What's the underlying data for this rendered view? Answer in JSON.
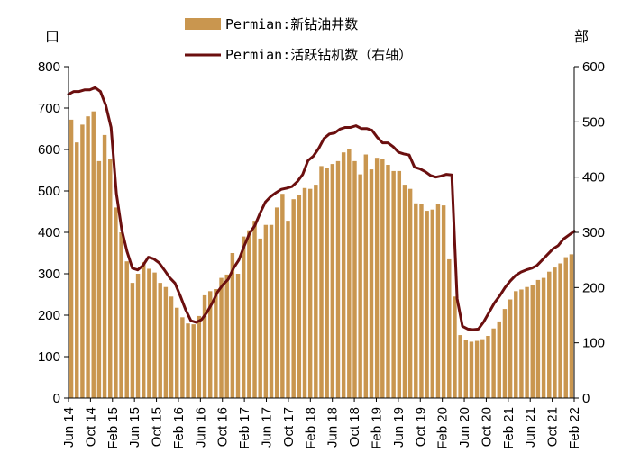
{
  "chart_data": {
    "type": "bar+line",
    "left_axis_unit": "口",
    "right_axis_unit": "部",
    "left_ylim": [
      0,
      800
    ],
    "right_ylim": [
      0,
      600
    ],
    "left_ticks": [
      "0",
      "100",
      "200",
      "300",
      "400",
      "500",
      "600",
      "700",
      "800"
    ],
    "right_ticks": [
      "0",
      "100",
      "200",
      "300",
      "400",
      "500",
      "600"
    ],
    "x_tick_labels": [
      "Jun 14",
      "Oct 14",
      "Feb 15",
      "Jun 15",
      "Oct 15",
      "Feb 16",
      "Jun 16",
      "Oct 16",
      "Feb 17",
      "Jun 17",
      "Oct 17",
      "Feb 18",
      "Jun 18",
      "Oct 18",
      "Feb 19",
      "Jun 19",
      "Oct 19",
      "Feb 20",
      "Jun 20",
      "Oct 20",
      "Feb 21",
      "Jun 21",
      "Oct 21",
      "Feb 22"
    ],
    "series": [
      {
        "name": "Permian:新钻油井数",
        "type": "bar",
        "axis": "left",
        "color": "#c9964f",
        "values": [
          672,
          617,
          660,
          680,
          692,
          572,
          635,
          578,
          460,
          400,
          330,
          278,
          300,
          328,
          312,
          303,
          278,
          268,
          245,
          218,
          195,
          180,
          178,
          198,
          248,
          258,
          263,
          290,
          298,
          350,
          300,
          390,
          405,
          428,
          385,
          418,
          418,
          460,
          493,
          428,
          480,
          490,
          507,
          505,
          515,
          560,
          556,
          565,
          572,
          593,
          600,
          572,
          540,
          588,
          552,
          580,
          578,
          563,
          548,
          548,
          515,
          505,
          470,
          468,
          452,
          455,
          468,
          465,
          335,
          245,
          152,
          140,
          136,
          138,
          142,
          150,
          168,
          185,
          215,
          238,
          258,
          262,
          268,
          272,
          285,
          290,
          305,
          315,
          325,
          340,
          347
        ]
      },
      {
        "name": "Permian:活跃钻机数（右轴）",
        "type": "line",
        "axis": "right",
        "color": "#6b0f0f",
        "values": [
          550,
          555,
          555,
          558,
          558,
          562,
          555,
          530,
          490,
          370,
          305,
          265,
          235,
          232,
          240,
          255,
          252,
          245,
          232,
          218,
          208,
          185,
          160,
          140,
          137,
          142,
          155,
          172,
          192,
          205,
          215,
          235,
          250,
          275,
          298,
          312,
          335,
          355,
          365,
          372,
          378,
          380,
          383,
          392,
          405,
          430,
          438,
          452,
          470,
          478,
          480,
          487,
          490,
          490,
          493,
          488,
          488,
          485,
          472,
          462,
          462,
          455,
          445,
          442,
          440,
          418,
          415,
          410,
          403,
          400,
          402,
          405,
          404,
          180,
          130,
          125,
          124,
          125,
          138,
          155,
          172,
          185,
          200,
          212,
          222,
          228,
          232,
          235,
          240,
          250,
          260,
          270,
          276,
          288,
          295,
          302
        ]
      }
    ],
    "grid": false,
    "legend_position": "top-center"
  }
}
